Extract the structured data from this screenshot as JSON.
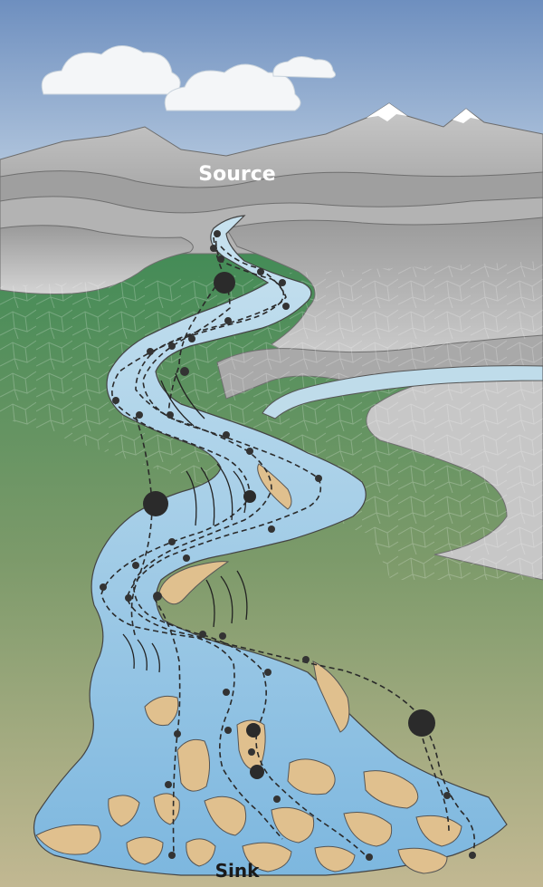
{
  "labels": {
    "source": "Source",
    "sink": "Sink"
  },
  "colors": {
    "sky_top": "#6e8fbf",
    "sky_bottom": "#d6e4ee",
    "mountain_dark": "#7d7d7d",
    "mountain_light": "#c8c8c8",
    "plain_green": "#4e8a5a",
    "plain_tan": "#b8b48a",
    "water": "#a8d0e6",
    "water_deep": "#7fb6dd",
    "sand_bar": "#e0c08e",
    "sediment_path": "#333333"
  }
}
